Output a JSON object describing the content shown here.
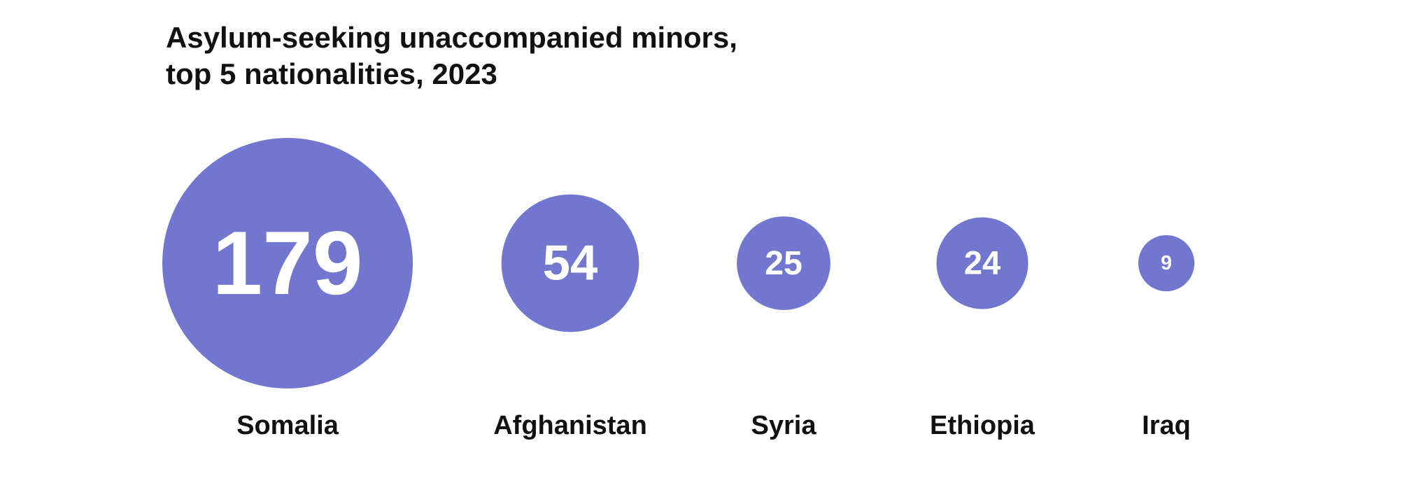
{
  "chart_data": {
    "type": "bubble",
    "title": "Asylum-seeking unaccompanied minors,",
    "subtitle": "top 5 nationalities, 2023",
    "categories": [
      "Somalia",
      "Afghanistan",
      "Syria",
      "Ethiopia",
      "Iraq"
    ],
    "values": [
      179,
      54,
      25,
      24,
      9
    ],
    "value_labels": [
      "179",
      "54",
      "25",
      "24",
      "9"
    ],
    "bubble_color": "#7177cf",
    "value_color": "#ffffff",
    "label_color": "#111111",
    "grid": false,
    "legend": "none"
  }
}
